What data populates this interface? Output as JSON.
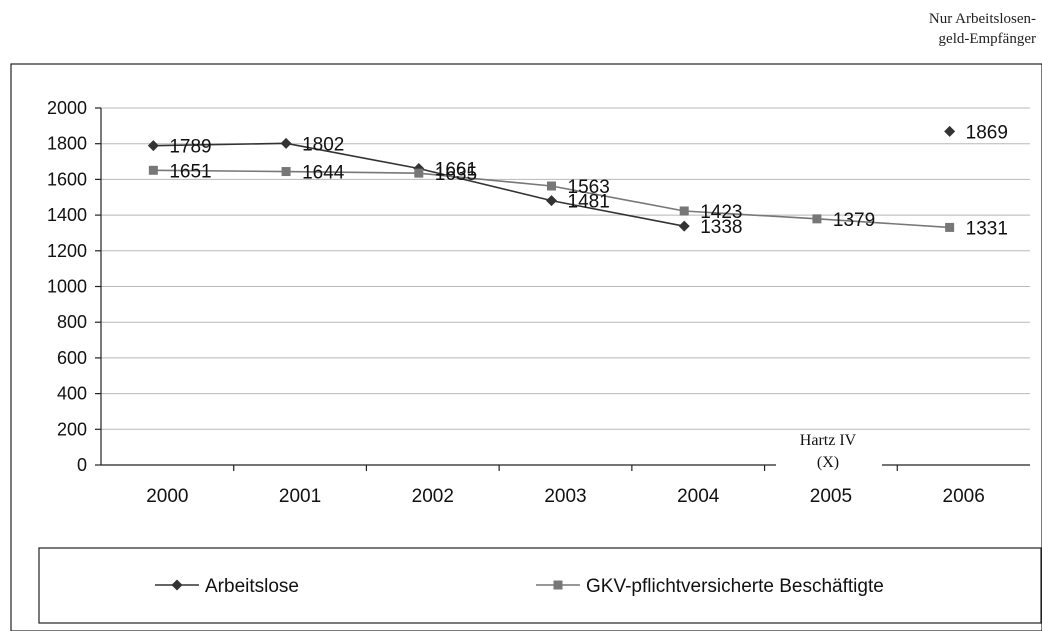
{
  "note": {
    "line1": "Nur Arbeitslosen-",
    "line2": "geld-Empfänger"
  },
  "hartz": {
    "line1": "Hartz IV",
    "line2": "(X)"
  },
  "chart_data": {
    "type": "line",
    "title": "",
    "xlabel": "",
    "ylabel": "",
    "categories": [
      "2000",
      "2001",
      "2002",
      "2003",
      "2004",
      "2005",
      "2006"
    ],
    "ylim": [
      0,
      2000
    ],
    "yticks": [
      0,
      200,
      400,
      600,
      800,
      1000,
      1200,
      1400,
      1600,
      1800,
      2000
    ],
    "grid": true,
    "legend_position": "bottom",
    "series": [
      {
        "name": "Arbeitslose",
        "marker": "diamond",
        "color": "#333333",
        "values": [
          1789,
          1802,
          1661,
          1481,
          1338,
          null,
          1869
        ],
        "labels": [
          "1789",
          "1802",
          "1661",
          "1481",
          "1338",
          "",
          "1869"
        ]
      },
      {
        "name": "GKV-pflichtversicherte Beschäftigte",
        "marker": "square",
        "color": "#777777",
        "values": [
          1651,
          1644,
          1635,
          1563,
          1423,
          1379,
          1331
        ],
        "labels": [
          "1651",
          "1644",
          "1635",
          "1563",
          "1423",
          "1379",
          "1331"
        ]
      }
    ]
  }
}
